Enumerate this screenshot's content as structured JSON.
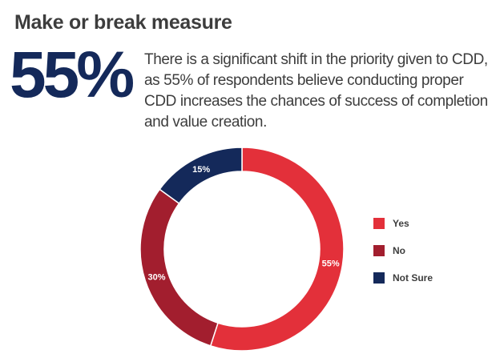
{
  "header": {
    "title": "Make or break measure",
    "stat": "55%",
    "description": "There is a significant shift in the priority given to CDD, as 55% of respondents believe conducting proper CDD increases the chances of success of completion and value creation."
  },
  "chart_data": {
    "type": "donut",
    "categories": [
      "Yes",
      "No",
      "Not Sure"
    ],
    "values": [
      55,
      30,
      15
    ],
    "data_labels": [
      "55%",
      "30%",
      "15%"
    ],
    "colors": [
      "#e3303a",
      "#a21e2e",
      "#14295a"
    ],
    "legend_position": "right"
  }
}
